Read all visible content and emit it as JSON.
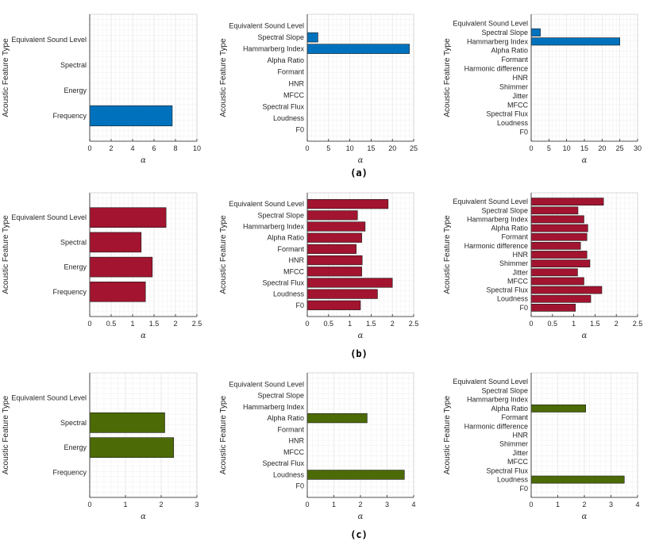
{
  "colors": {
    "a": "#0072BD",
    "b": "#A2142F",
    "c": "#4C6A06",
    "grid": "#e6e6e6",
    "minor": "#f1f1f1",
    "axis": "#262626"
  },
  "chart_data": [
    {
      "type": "bar",
      "orientation": "horizontal",
      "row": "a",
      "col": 0,
      "categories": [
        "Equivalent Sound Level",
        "Spectral",
        "Energy",
        "Frequency"
      ],
      "values": [
        0,
        0,
        0,
        7.7
      ],
      "xlim": [
        0,
        10
      ],
      "xticks": [
        0,
        2,
        4,
        6,
        8,
        10
      ],
      "xlabel": "α",
      "ylabel": "Acoustic Feature Type"
    },
    {
      "type": "bar",
      "orientation": "horizontal",
      "row": "a",
      "col": 1,
      "categories": [
        "Equivalent Sound Level",
        "Spectral Slope",
        "Hammarberg Index",
        "Alpha Ratio",
        "Formant",
        "HNR",
        "MFCC",
        "Spectral Flux",
        "Loudness",
        "F0"
      ],
      "values": [
        0,
        2.5,
        24,
        0,
        0,
        0,
        0,
        0,
        0,
        0
      ],
      "xlim": [
        0,
        25
      ],
      "xticks": [
        0,
        5,
        10,
        15,
        20,
        25
      ],
      "xlabel": "α",
      "ylabel": "Acoustic Feature Type"
    },
    {
      "type": "bar",
      "orientation": "horizontal",
      "row": "a",
      "col": 2,
      "categories": [
        "Equivalent Sound Level",
        "Spectral Slope",
        "Hammarberg Index",
        "Alpha Ratio",
        "Formant",
        "Harmonic difference",
        "HNR",
        "Shimmer",
        "Jitter",
        "MFCC",
        "Spectral Flux",
        "Loudness",
        "F0"
      ],
      "values": [
        0,
        2.6,
        25,
        0,
        0,
        0,
        0,
        0,
        0,
        0,
        0,
        0,
        0
      ],
      "xlim": [
        0,
        30
      ],
      "xticks": [
        0,
        5,
        10,
        15,
        20,
        25,
        30
      ],
      "xlabel": "α",
      "ylabel": "Acoustic Feature Type"
    },
    {
      "type": "bar",
      "orientation": "horizontal",
      "row": "b",
      "col": 0,
      "categories": [
        "Equivalent Sound Level",
        "Spectral",
        "Energy",
        "Frequency"
      ],
      "values": [
        1.78,
        1.2,
        1.46,
        1.3
      ],
      "xlim": [
        0,
        2.5
      ],
      "xticks": [
        0,
        0.5,
        1,
        1.5,
        2,
        2.5
      ],
      "xlabel": "α",
      "ylabel": "Acoustic Feature Type"
    },
    {
      "type": "bar",
      "orientation": "horizontal",
      "row": "b",
      "col": 1,
      "categories": [
        "Equivalent Sound Level",
        "Spectral Slope",
        "Hammarberg Index",
        "Alpha Ratio",
        "Formant",
        "HNR",
        "MFCC",
        "Spectral Flux",
        "Loudness",
        "F0"
      ],
      "values": [
        1.9,
        1.18,
        1.36,
        1.28,
        1.15,
        1.29,
        1.28,
        2.0,
        1.65,
        1.25
      ],
      "xlim": [
        0,
        2.5
      ],
      "xticks": [
        0,
        0.5,
        1,
        1.5,
        2,
        2.5
      ],
      "xlabel": "α",
      "ylabel": "Acoustic Feature Type"
    },
    {
      "type": "bar",
      "orientation": "horizontal",
      "row": "b",
      "col": 2,
      "categories": [
        "Equivalent Sound Level",
        "Spectral Slope",
        "Hammarberg Index",
        "Alpha Ratio",
        "Formant",
        "Harmonic difference",
        "HNR",
        "Shimmer",
        "Jitter",
        "MFCC",
        "Spectral Flux",
        "Loudness",
        "F0"
      ],
      "values": [
        1.7,
        1.1,
        1.24,
        1.33,
        1.31,
        1.16,
        1.31,
        1.38,
        1.09,
        1.24,
        1.66,
        1.4,
        1.04
      ],
      "xlim": [
        0,
        2.5
      ],
      "xticks": [
        0,
        0.5,
        1,
        1.5,
        2,
        2.5
      ],
      "xlabel": "α",
      "ylabel": "Acoustic Feature Type"
    },
    {
      "type": "bar",
      "orientation": "horizontal",
      "row": "c",
      "col": 0,
      "categories": [
        "Equivalent Sound Level",
        "Spectral",
        "Energy",
        "Frequency"
      ],
      "values": [
        0,
        2.1,
        2.35,
        0
      ],
      "xlim": [
        0,
        3
      ],
      "xticks": [
        0,
        1,
        2,
        3
      ],
      "xlabel": "α",
      "ylabel": "Acoustic Feature Type"
    },
    {
      "type": "bar",
      "orientation": "horizontal",
      "row": "c",
      "col": 1,
      "categories": [
        "Equivalent Sound Level",
        "Spectral Slope",
        "Hammarberg Index",
        "Alpha Ratio",
        "Formant",
        "HNR",
        "MFCC",
        "Spectral Flux",
        "Loudness",
        "F0"
      ],
      "values": [
        0,
        0,
        0,
        2.25,
        0,
        0,
        0,
        0,
        3.65,
        0
      ],
      "xlim": [
        0,
        4
      ],
      "xticks": [
        0,
        1,
        2,
        3,
        4
      ],
      "xlabel": "α",
      "ylabel": "Acoustic Feature Type"
    },
    {
      "type": "bar",
      "orientation": "horizontal",
      "row": "c",
      "col": 2,
      "categories": [
        "Equivalent Sound Level",
        "Spectral Slope",
        "Hammarberg Index",
        "Alpha Ratio",
        "Formant",
        "Harmonic difference",
        "HNR",
        "Shimmer",
        "Jitter",
        "MFCC",
        "Spectral Flux",
        "Loudness",
        "F0"
      ],
      "values": [
        0,
        0,
        0,
        2.05,
        0,
        0,
        0,
        0,
        0,
        0,
        0,
        3.5,
        0
      ],
      "xlim": [
        0,
        4
      ],
      "xticks": [
        0,
        1,
        2,
        3,
        4
      ],
      "xlabel": "α",
      "ylabel": "Acoustic Feature Type"
    }
  ],
  "captions": {
    "a": "(a)",
    "b": "(b)",
    "c": "(c)"
  }
}
